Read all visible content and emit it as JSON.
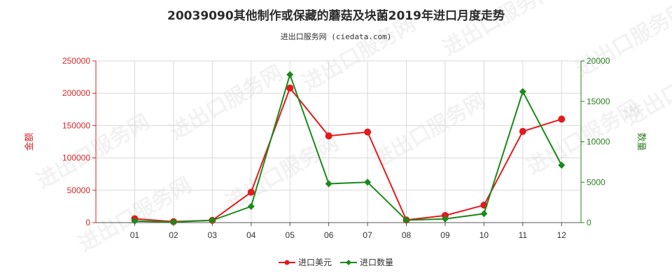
{
  "title": "20039090其他制作或保藏的蘑菇及块菌2019年进口月度走势",
  "subtitle": "进出口服务网 (ciedata.com)",
  "watermark": "进出口服务网",
  "colors": {
    "left_axis": "#d62728",
    "right_axis": "#2a7f1e",
    "usd_series": "#e31a1c",
    "qty_series": "#1a8a1a",
    "grid": "#d9d9d9"
  },
  "chart_data": {
    "type": "line",
    "title": "20039090其他制作或保藏的蘑菇及块菌2019年进口月度走势",
    "categories": [
      "01",
      "02",
      "03",
      "04",
      "05",
      "06",
      "07",
      "08",
      "09",
      "10",
      "11",
      "12"
    ],
    "y_left": {
      "label": "金额",
      "ylim": [
        0,
        250000
      ],
      "ticks": [
        0,
        50000,
        100000,
        150000,
        200000,
        250000
      ]
    },
    "y_right": {
      "label": "数量",
      "ylim": [
        0,
        20000
      ],
      "ticks": [
        0,
        5000,
        10000,
        15000,
        20000
      ]
    },
    "grid": true,
    "legend_position": "bottom-center",
    "series": [
      {
        "name": "进口美元",
        "axis": "left",
        "color": "#e31a1c",
        "values": [
          6000,
          1500,
          3500,
          47000,
          208000,
          134000,
          140000,
          4000,
          11000,
          27000,
          141000,
          160000
        ]
      },
      {
        "name": "进口数量",
        "axis": "right",
        "color": "#1a8a1a",
        "values": [
          200,
          80,
          280,
          2000,
          18300,
          4800,
          5000,
          300,
          450,
          1100,
          16200,
          7100
        ]
      }
    ]
  }
}
